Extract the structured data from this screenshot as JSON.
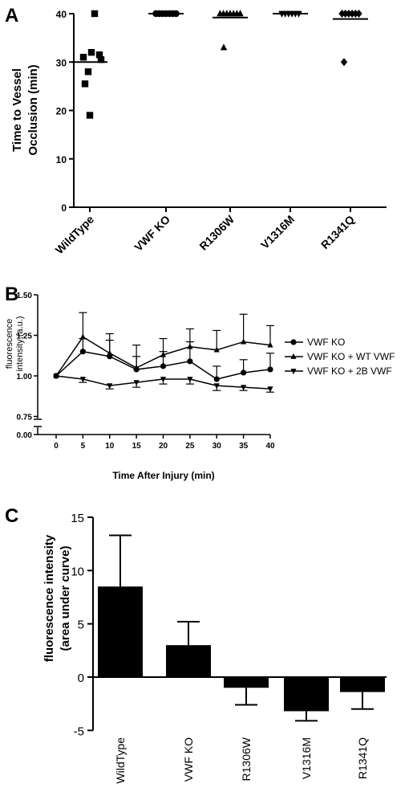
{
  "chart_data": [
    {
      "panel": "A",
      "type": "scatter",
      "ylabel": "Time to Vessel Occlusion (min)",
      "ylabel_lines": [
        "Time to Vessel",
        "Occlusion (min)"
      ],
      "ylim": [
        0,
        40
      ],
      "yticks": [
        0,
        10,
        20,
        30,
        40
      ],
      "categories": [
        "WildType",
        "VWF KO",
        "R1306W",
        "V1316M",
        "R1341Q"
      ],
      "markers": [
        "square",
        "circle",
        "triangle-up",
        "triangle-down",
        "diamond"
      ],
      "points": [
        [
          40,
          31,
          32,
          31.5,
          30.5,
          28,
          25.5,
          19
        ],
        [
          40,
          40,
          40,
          40,
          40,
          40,
          40
        ],
        [
          40,
          40,
          40,
          40,
          40,
          40,
          40,
          33
        ],
        [
          40,
          40,
          40,
          40,
          40,
          40
        ],
        [
          40,
          40,
          40,
          40,
          40,
          40,
          30
        ]
      ],
      "means": [
        30,
        40,
        39.2,
        40,
        38.9
      ]
    },
    {
      "panel": "B",
      "type": "line",
      "xlabel": "Time After Injury (min)",
      "ylabel_lines": [
        "fluorescence",
        "intensity (a.u.)"
      ],
      "x": [
        0,
        5,
        10,
        15,
        20,
        25,
        30,
        35,
        40
      ],
      "xticks": [
        "0",
        "5",
        "10",
        "15",
        "20",
        "25",
        "30",
        "35",
        "40"
      ],
      "yticks": [
        "0.75",
        "1.00",
        "1.25",
        "1.50"
      ],
      "ybreak_ticks": [
        "0.00"
      ],
      "ylim": [
        0.75,
        1.5
      ],
      "series": [
        {
          "name": "VWF KO",
          "marker": "circle",
          "values": [
            1.0,
            1.15,
            1.12,
            1.04,
            1.06,
            1.09,
            0.98,
            1.02,
            1.04
          ],
          "err": [
            0,
            0.08,
            0.1,
            0.08,
            0.09,
            0.12,
            0.08,
            0.08,
            0.1
          ]
        },
        {
          "name": "VWF KO + WT VWF",
          "marker": "triangle-up",
          "values": [
            1.0,
            1.24,
            1.14,
            1.05,
            1.13,
            1.18,
            1.16,
            1.21,
            1.19
          ],
          "err": [
            0,
            0.15,
            0.12,
            0.14,
            0.1,
            0.11,
            0.12,
            0.17,
            0.12
          ]
        },
        {
          "name": "VWF KO + 2B VWF",
          "marker": "triangle-down",
          "values": [
            1.0,
            0.98,
            0.94,
            0.96,
            0.98,
            0.98,
            0.94,
            0.93,
            0.92
          ],
          "err": [
            0,
            0.02,
            0.02,
            0.03,
            0.03,
            0.03,
            0.03,
            0.02,
            0.02
          ]
        }
      ]
    },
    {
      "panel": "C",
      "type": "bar",
      "ylabel_lines": [
        "fluorescence intensity",
        "(area under curve)"
      ],
      "categories": [
        "WildType",
        "VWF KO",
        "R1306W",
        "V1316M",
        "R1341Q"
      ],
      "values": [
        8.5,
        3.0,
        -1.0,
        -3.2,
        -1.4
      ],
      "err": [
        4.8,
        2.2,
        1.6,
        0.9,
        1.6
      ],
      "ylim": [
        -5,
        15
      ],
      "yticks": [
        -5,
        0,
        5,
        10,
        15
      ]
    }
  ]
}
